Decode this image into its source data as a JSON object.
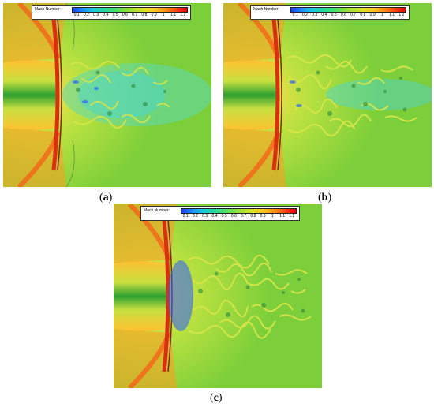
{
  "panels": [
    {
      "id": "a",
      "caption_letter": "a"
    },
    {
      "id": "b",
      "caption_letter": "b"
    },
    {
      "id": "c",
      "caption_letter": "c"
    }
  ],
  "legend": {
    "title": "Mach Number:",
    "ticks": [
      "0.1",
      "0.2",
      "0.3",
      "0.4",
      "0.5",
      "0.6",
      "0.7",
      "0.8",
      "0.9",
      "1",
      "1.1",
      "1.2"
    ],
    "colors": [
      "#1a3cff",
      "#1e8cff",
      "#18c8e6",
      "#20d8a0",
      "#40e070",
      "#7be040",
      "#b0e030",
      "#e0e020",
      "#ffc020",
      "#ff8a10",
      "#ff4010",
      "#e00000"
    ]
  },
  "colors": {
    "freestream": "#86d23a",
    "stagnation": "#e0451a",
    "wake_core": "#4fd6c8",
    "vortex": "#d8e64a"
  }
}
